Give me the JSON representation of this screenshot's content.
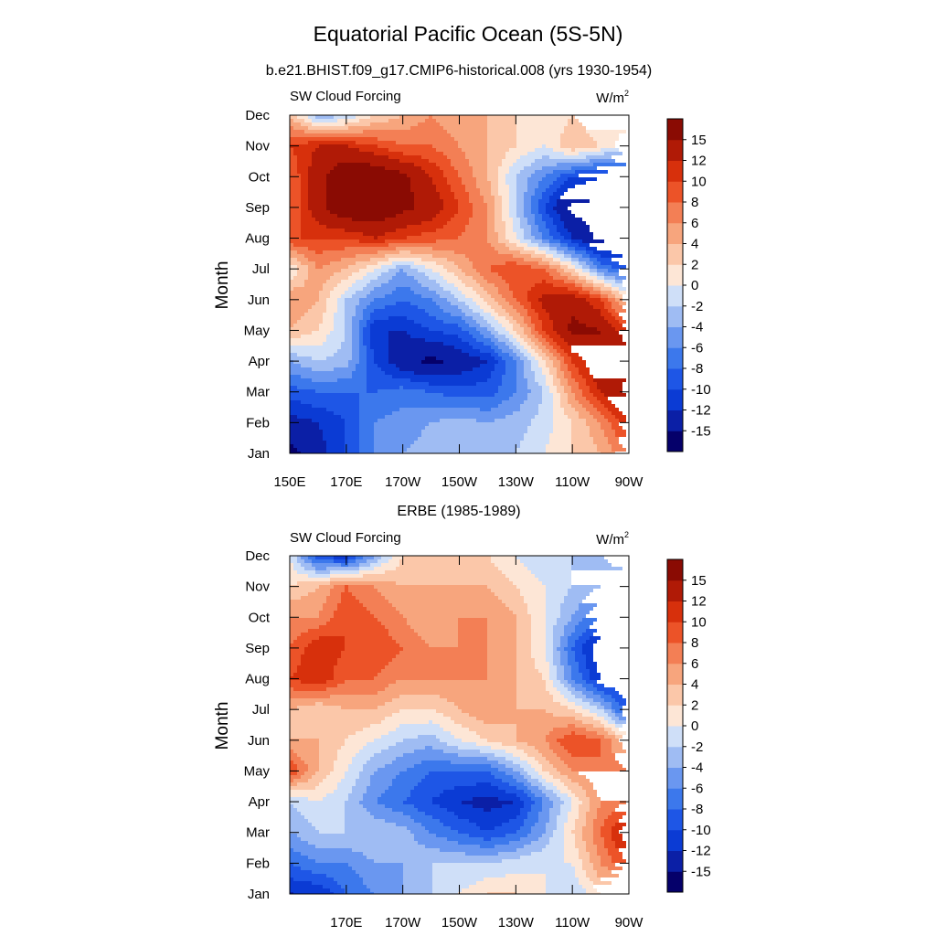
{
  "figure": {
    "title": "Equatorial Pacific Ocean (5S-5N)"
  },
  "colorbar": {
    "labels": [
      "15",
      "12",
      "10",
      "8",
      "6",
      "4",
      "2",
      "0",
      "-2",
      "-4",
      "-6",
      "-8",
      "-10",
      "-12",
      "-15"
    ],
    "levels": [
      -15,
      -12,
      -10,
      -8,
      -6,
      -4,
      -2,
      0,
      2,
      4,
      6,
      8,
      10,
      12,
      15
    ],
    "colors": [
      "#05006a",
      "#0b1fa6",
      "#0b3bd4",
      "#1e56e6",
      "#3c78ec",
      "#6a97f0",
      "#9fbcf3",
      "#cfdff8",
      "#fde6d6",
      "#fbc7a9",
      "#f7a57d",
      "#f37f55",
      "#ec5328",
      "#d7300c",
      "#b01a06",
      "#8a0b03"
    ]
  },
  "chart_data": [
    {
      "type": "heatmap",
      "title": "b.e21.BHIST.f09_g17.CMIP6-historical.008 (yrs 1930-1954)",
      "left_label": "SW Cloud Forcing",
      "units_label": "W/m",
      "units_superscript": "2",
      "ylabel": "Month",
      "xlabel": "",
      "x_ticks": [
        "150E",
        "170E",
        "170W",
        "150W",
        "130W",
        "110W",
        "90W"
      ],
      "y_ticks": [
        "Jan",
        "Feb",
        "Mar",
        "Apr",
        "May",
        "Jun",
        "Jul",
        "Aug",
        "Sep",
        "Oct",
        "Nov",
        "Dec"
      ],
      "x_range_deg_east": [
        150,
        270
      ],
      "y_range": [
        "Jan",
        "Dec"
      ],
      "x": [
        150,
        160,
        170,
        180,
        190,
        200,
        210,
        220,
        230,
        240,
        250,
        260,
        270
      ],
      "y": [
        "Jan",
        "Feb",
        "Mar",
        "Apr",
        "May",
        "Jun",
        "Jul",
        "Aug",
        "Sep",
        "Oct",
        "Nov",
        "Dec"
      ],
      "values": [
        [
          -16,
          -13,
          -10,
          -6,
          -4,
          -3,
          -3,
          -4,
          -2,
          0,
          2,
          4,
          8
        ],
        [
          -13,
          -12,
          -10,
          -6,
          -5,
          -4,
          -3,
          -4,
          -3,
          -1,
          2,
          6,
          12
        ],
        [
          -9,
          -8,
          -8,
          -8,
          -7,
          -8,
          -9,
          -9,
          -6,
          -2,
          6,
          12,
          16
        ],
        [
          -4,
          -2,
          -3,
          -10,
          -14,
          -16,
          -14,
          -12,
          -6,
          2,
          10,
          15,
          14
        ],
        [
          4,
          2,
          -2,
          -12,
          -12,
          -10,
          -9,
          -4,
          2,
          10,
          16,
          15,
          10
        ],
        [
          6,
          4,
          -2,
          -6,
          -8,
          -6,
          -2,
          3,
          8,
          13,
          14,
          10,
          2
        ],
        [
          0,
          6,
          4,
          0,
          -4,
          0,
          4,
          8,
          10,
          8,
          2,
          -6,
          -10
        ],
        [
          10,
          10,
          10,
          12,
          10,
          9,
          8,
          6,
          0,
          -6,
          -12,
          -16,
          -16
        ],
        [
          8,
          14,
          18,
          18,
          16,
          14,
          10,
          6,
          -2,
          -10,
          -16,
          -16,
          -16
        ],
        [
          8,
          14,
          18,
          18,
          16,
          12,
          8,
          4,
          -2,
          -6,
          -10,
          -12,
          -12
        ],
        [
          10,
          12,
          12,
          10,
          8,
          8,
          6,
          4,
          2,
          0,
          4,
          2,
          -2
        ],
        [
          4,
          -4,
          -2,
          2,
          4,
          6,
          4,
          4,
          2,
          0,
          2,
          0,
          2
        ]
      ]
    },
    {
      "type": "heatmap",
      "title": "ERBE (1985-1989)",
      "left_label": "SW Cloud Forcing",
      "units_label": "W/m",
      "units_superscript": "2",
      "ylabel": "Month",
      "xlabel": "",
      "x_ticks": [
        "",
        "170E",
        "170W",
        "150W",
        "130W",
        "110W",
        "90W"
      ],
      "y_ticks": [
        "Jan",
        "Feb",
        "Mar",
        "Apr",
        "May",
        "Jun",
        "Jul",
        "Aug",
        "Sep",
        "Oct",
        "Nov",
        "Dec"
      ],
      "x_range_deg_east": [
        150,
        270
      ],
      "y_range": [
        "Jan",
        "Dec"
      ],
      "x": [
        150,
        160,
        170,
        180,
        190,
        200,
        210,
        220,
        230,
        240,
        250,
        260,
        270
      ],
      "y": [
        "Jan",
        "Feb",
        "Mar",
        "Apr",
        "May",
        "Jun",
        "Jul",
        "Aug",
        "Sep",
        "Oct",
        "Nov",
        "Dec"
      ],
      "values": [
        [
          -12,
          -12,
          -8,
          -6,
          -4,
          -2,
          0,
          2,
          2,
          0,
          -2,
          2,
          2
        ],
        [
          -8,
          -6,
          -6,
          -4,
          -4,
          -2,
          -2,
          -2,
          -1,
          0,
          0,
          6,
          10
        ],
        [
          -4,
          -2,
          -2,
          -2,
          -3,
          -6,
          -8,
          -10,
          -8,
          -4,
          2,
          8,
          14
        ],
        [
          -2,
          0,
          -2,
          -6,
          -8,
          -10,
          -12,
          -13,
          -12,
          -6,
          0,
          6,
          8
        ],
        [
          10,
          4,
          0,
          -4,
          -6,
          -8,
          -8,
          -8,
          -4,
          2,
          6,
          8,
          6
        ],
        [
          4,
          4,
          2,
          0,
          -2,
          -3,
          0,
          2,
          4,
          6,
          10,
          8,
          2
        ],
        [
          4,
          2,
          4,
          4,
          2,
          2,
          4,
          6,
          4,
          4,
          2,
          -2,
          -10
        ],
        [
          10,
          12,
          8,
          8,
          6,
          6,
          6,
          6,
          4,
          2,
          -6,
          -12,
          -12
        ],
        [
          8,
          12,
          10,
          10,
          8,
          6,
          6,
          6,
          4,
          0,
          -8,
          -14,
          -14
        ],
        [
          6,
          6,
          10,
          8,
          6,
          4,
          6,
          6,
          4,
          0,
          -4,
          -8,
          -8
        ],
        [
          2,
          4,
          8,
          6,
          4,
          4,
          4,
          4,
          2,
          0,
          -2,
          -4,
          -4
        ],
        [
          0,
          -10,
          -12,
          -4,
          2,
          2,
          2,
          2,
          0,
          -2,
          -2,
          -2,
          0
        ]
      ]
    }
  ]
}
